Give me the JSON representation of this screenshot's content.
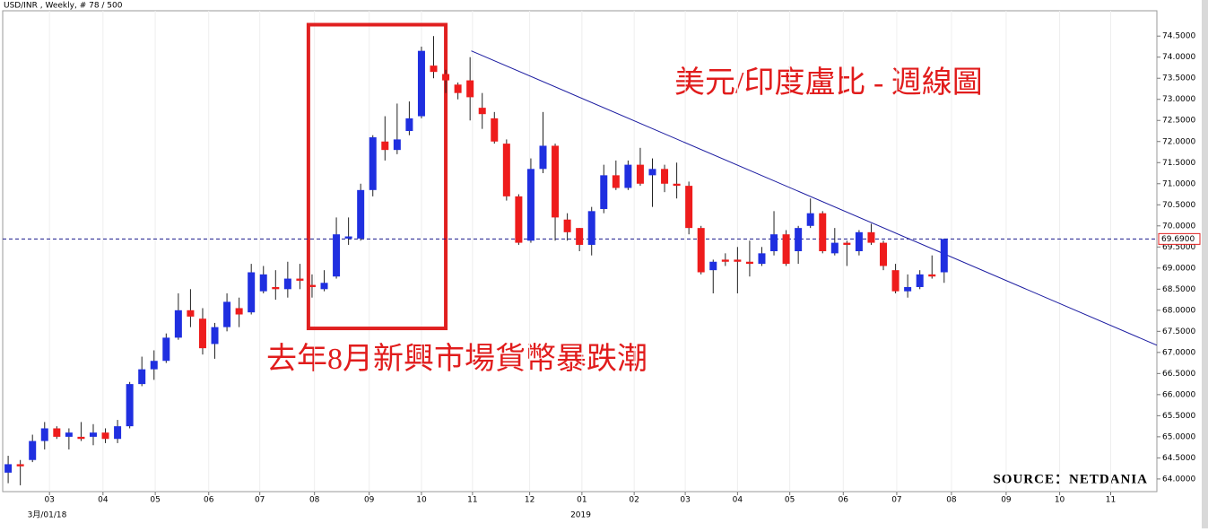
{
  "chart_data": {
    "type": "candlestick",
    "title": "USD/INR , Weekly, # 78 / 500",
    "annotations": [
      "美元/印度盧比 - 週線圖",
      "去年8月新興市場貨幣暴跌潮"
    ],
    "source": "SOURCE：NETDANIA",
    "x": [
      0,
      1,
      2,
      3,
      4,
      5,
      6,
      7,
      8,
      9,
      10,
      11,
      12,
      13,
      14,
      15,
      16,
      17,
      18,
      19,
      20,
      21,
      22,
      23,
      24,
      25,
      26,
      27,
      28,
      29,
      30,
      31,
      32,
      33,
      34,
      35,
      36,
      37,
      38,
      39,
      40,
      41,
      42,
      43,
      44,
      45,
      46,
      47,
      48,
      49,
      50,
      51,
      52,
      53,
      54,
      55,
      56,
      57,
      58,
      59,
      60,
      61,
      62,
      63,
      64,
      65,
      66,
      67,
      68,
      69,
      70,
      71,
      72,
      73,
      74,
      75,
      76,
      77
    ],
    "open": [
      64.15,
      64.35,
      64.45,
      64.9,
      65.2,
      65.0,
      65.0,
      65.0,
      65.1,
      64.95,
      65.25,
      66.25,
      66.6,
      66.8,
      67.35,
      68.0,
      67.8,
      67.2,
      67.6,
      68.05,
      67.95,
      68.45,
      68.55,
      68.5,
      68.75,
      68.6,
      68.5,
      68.8,
      69.7,
      69.7,
      70.85,
      72.0,
      71.8,
      72.25,
      72.6,
      73.8,
      73.6,
      73.35,
      73.45,
      72.8,
      72.55,
      71.95,
      70.7,
      69.65,
      71.35,
      71.9,
      70.15,
      69.95,
      69.55,
      70.4,
      71.2,
      70.9,
      71.45,
      71.2,
      71.35,
      71.0,
      70.95,
      69.95,
      68.95,
      69.2,
      69.2,
      69.15,
      69.1,
      69.4,
      69.8,
      69.4,
      70.0,
      70.3,
      69.35,
      69.6,
      69.4,
      69.85,
      69.6,
      68.95,
      68.45,
      68.55,
      68.85,
      68.9
    ],
    "high": [
      64.55,
      64.45,
      65.05,
      65.35,
      65.25,
      65.2,
      65.35,
      65.3,
      65.2,
      65.4,
      66.3,
      66.9,
      67.05,
      67.45,
      68.4,
      68.5,
      68.05,
      67.7,
      68.4,
      68.3,
      69.1,
      69.05,
      68.95,
      69.15,
      69.1,
      68.85,
      68.95,
      70.2,
      70.2,
      71.0,
      72.15,
      72.6,
      72.9,
      72.95,
      74.25,
      74.5,
      73.7,
      73.4,
      74.0,
      73.15,
      72.7,
      72.05,
      70.75,
      71.6,
      72.7,
      71.95,
      70.3,
      69.95,
      70.45,
      71.45,
      71.55,
      71.55,
      71.85,
      71.6,
      71.45,
      71.5,
      71.05,
      70.0,
      69.2,
      69.35,
      69.5,
      69.65,
      69.5,
      70.35,
      69.9,
      70.0,
      70.65,
      70.35,
      69.95,
      69.65,
      69.9,
      70.05,
      69.65,
      69.1,
      68.85,
      68.95,
      69.3,
      69.7
    ],
    "low": [
      63.9,
      63.85,
      64.4,
      64.7,
      64.95,
      64.7,
      64.9,
      64.8,
      64.85,
      64.85,
      65.2,
      66.2,
      66.35,
      66.75,
      67.3,
      67.6,
      66.95,
      66.85,
      67.5,
      67.6,
      67.9,
      68.4,
      68.25,
      68.3,
      68.5,
      68.3,
      68.45,
      68.75,
      69.55,
      69.65,
      70.7,
      71.55,
      71.7,
      72.15,
      72.55,
      73.5,
      73.15,
      73.0,
      72.5,
      72.3,
      71.95,
      70.6,
      69.55,
      69.6,
      71.25,
      69.65,
      69.65,
      69.4,
      69.3,
      70.3,
      70.85,
      70.85,
      70.95,
      70.45,
      70.8,
      70.65,
      69.8,
      68.85,
      68.4,
      69.05,
      68.4,
      68.8,
      69.05,
      69.3,
      69.05,
      69.1,
      69.95,
      69.35,
      69.3,
      69.05,
      69.3,
      69.55,
      68.95,
      68.4,
      68.3,
      68.5,
      68.75,
      68.65
    ],
    "close": [
      64.35,
      64.3,
      64.9,
      65.2,
      65.0,
      65.1,
      64.95,
      65.1,
      64.95,
      65.25,
      66.25,
      66.6,
      66.8,
      67.35,
      68.0,
      67.85,
      67.1,
      67.6,
      68.2,
      67.9,
      68.9,
      68.85,
      68.5,
      68.75,
      68.7,
      68.55,
      68.65,
      69.8,
      69.75,
      70.85,
      72.1,
      71.8,
      72.05,
      72.55,
      74.15,
      73.65,
      73.45,
      73.15,
      73.05,
      72.65,
      72.0,
      70.7,
      69.6,
      71.35,
      71.9,
      70.2,
      69.85,
      69.55,
      70.35,
      71.2,
      70.9,
      71.45,
      71.0,
      71.35,
      71.0,
      70.95,
      69.95,
      68.9,
      69.15,
      69.15,
      69.15,
      69.1,
      69.35,
      69.8,
      69.1,
      69.95,
      70.3,
      69.4,
      69.6,
      69.55,
      69.85,
      69.6,
      69.05,
      68.45,
      68.55,
      68.85,
      68.8,
      69.69
    ],
    "up_color": "#1f2fe0",
    "down_color": "#ee1c1c",
    "xlim": [
      -0.45,
      94.5
    ],
    "xticks": [
      {
        "value": 3.4,
        "label": "03"
      },
      {
        "value": 7.8,
        "label": "04"
      },
      {
        "value": 12.1,
        "label": "05"
      },
      {
        "value": 16.5,
        "label": "06"
      },
      {
        "value": 20.7,
        "label": "07"
      },
      {
        "value": 25.2,
        "label": "08"
      },
      {
        "value": 29.7,
        "label": "09"
      },
      {
        "value": 34.0,
        "label": "10"
      },
      {
        "value": 38.2,
        "label": "11"
      },
      {
        "value": 42.9,
        "label": "12"
      },
      {
        "value": 47.2,
        "label": "01"
      },
      {
        "value": 51.5,
        "label": "02"
      },
      {
        "value": 55.7,
        "label": "03"
      },
      {
        "value": 60.0,
        "label": "04"
      },
      {
        "value": 64.3,
        "label": "05"
      },
      {
        "value": 68.7,
        "label": "06"
      },
      {
        "value": 73.1,
        "label": "07"
      },
      {
        "value": 77.6,
        "label": "08"
      },
      {
        "value": 82.1,
        "label": "09"
      },
      {
        "value": 86.5,
        "label": "10"
      },
      {
        "value": 90.7,
        "label": "11"
      }
    ],
    "x_sublabels": [
      {
        "value": 3.2,
        "label": "3月/01/18"
      },
      {
        "value": 47.1,
        "label": "2019"
      }
    ],
    "ylim": [
      63.7,
      75.1
    ],
    "yticks": [
      {
        "value": 64.0,
        "label": "64.0000"
      },
      {
        "value": 64.5,
        "label": "64.5000"
      },
      {
        "value": 65.0,
        "label": "65.0000"
      },
      {
        "value": 65.5,
        "label": "65.5000"
      },
      {
        "value": 66.0,
        "label": "66.0000"
      },
      {
        "value": 66.5,
        "label": "66.5000"
      },
      {
        "value": 67.0,
        "label": "67.0000"
      },
      {
        "value": 67.5,
        "label": "67.5000"
      },
      {
        "value": 68.0,
        "label": "68.0000"
      },
      {
        "value": 68.5,
        "label": "68.5000"
      },
      {
        "value": 69.0,
        "label": "69.0000"
      },
      {
        "value": 69.5,
        "label": "69.5000"
      },
      {
        "value": 70.0,
        "label": "70.0000"
      },
      {
        "value": 70.5,
        "label": "70.5000"
      },
      {
        "value": 71.0,
        "label": "71.0000"
      },
      {
        "value": 71.5,
        "label": "71.5000"
      },
      {
        "value": 72.0,
        "label": "72.0000"
      },
      {
        "value": 72.5,
        "label": "72.5000"
      },
      {
        "value": 73.0,
        "label": "73.0000"
      },
      {
        "value": 73.5,
        "label": "73.5000"
      },
      {
        "value": 74.0,
        "label": "74.0000"
      },
      {
        "value": 74.5,
        "label": "74.5000"
      }
    ],
    "current": {
      "value": 69.69,
      "label": "69.6900"
    },
    "trendline": {
      "x": [
        38.1,
        94.5
      ],
      "y": [
        74.15,
        67.17
      ]
    },
    "highlight": {
      "x": [
        24.7,
        36.0
      ],
      "y": [
        67.57,
        74.77
      ]
    }
  }
}
